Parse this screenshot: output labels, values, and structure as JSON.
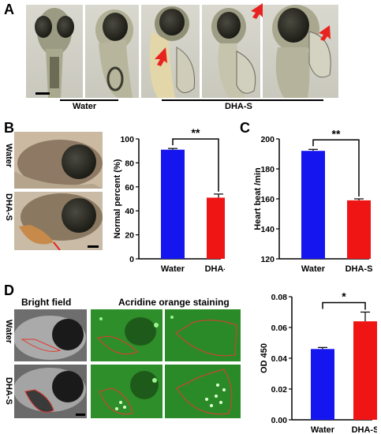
{
  "panels": {
    "A": "A",
    "B": "B",
    "C": "C",
    "D": "D"
  },
  "panel_a": {
    "group_water": "Water",
    "group_dhas": "DHA-S"
  },
  "panel_b": {
    "row_water": "Water",
    "row_dhas": "DHA-S"
  },
  "panel_d": {
    "bright_field": "Bright field",
    "ao_staining": "Acridine orange staining",
    "row_water": "Water",
    "row_dhas": "DHA-S"
  },
  "colors": {
    "water_bar": "#1515f0",
    "dhas_bar": "#f01515",
    "arrow": "#e8231f",
    "outline": "#e23a2e",
    "fluor_bg": "#2e8f2a"
  },
  "chart_data": [
    {
      "type": "bar",
      "panel": "B",
      "categories": [
        "Water",
        "DHA-S"
      ],
      "values": [
        91,
        51
      ],
      "errors": [
        1,
        3
      ],
      "ylabel": "Normal percent (%)",
      "ylim": [
        0,
        100
      ],
      "yticks": [
        "0",
        "20",
        "40",
        "60",
        "80",
        "100"
      ],
      "significance": "**"
    },
    {
      "type": "bar",
      "panel": "C",
      "categories": [
        "Water",
        "DHA-S"
      ],
      "values": [
        192,
        159
      ],
      "errors": [
        1,
        1
      ],
      "ylabel": "Heart beat /min",
      "ylim": [
        120,
        200
      ],
      "yticks": [
        "120",
        "140",
        "160",
        "180",
        "200"
      ],
      "significance": "**"
    },
    {
      "type": "bar",
      "panel": "D",
      "categories": [
        "Water",
        "DHA-S"
      ],
      "values": [
        0.046,
        0.064
      ],
      "errors": [
        0.001,
        0.006
      ],
      "ylabel": "OD 450",
      "ylim": [
        0,
        0.08
      ],
      "yticks": [
        "0.00",
        "0.02",
        "0.04",
        "0.06",
        "0.08"
      ],
      "significance": "*"
    }
  ]
}
